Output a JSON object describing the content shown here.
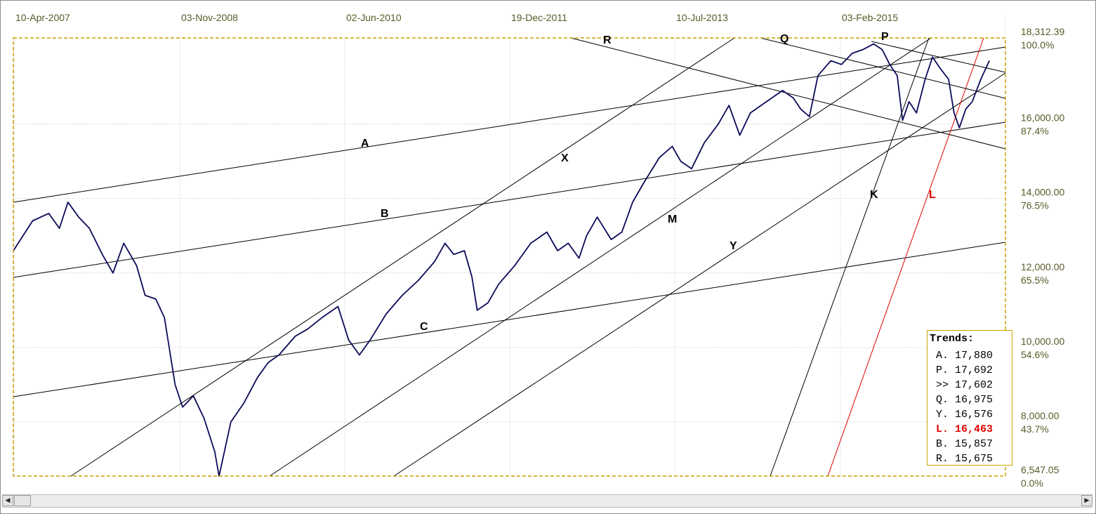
{
  "chart_data": {
    "type": "line",
    "x_ticks": [
      "10-Apr-2007",
      "03-Nov-2008",
      "02-Jun-2010",
      "19-Dec-2011",
      "10-Jul-2013",
      "03-Feb-2015"
    ],
    "y_ticks": [
      {
        "value": "18,312.39",
        "pct": "100.0%"
      },
      {
        "value": "16,000.00",
        "pct": "87.4%"
      },
      {
        "value": "14,000.00",
        "pct": "76.5%"
      },
      {
        "value": "12,000.00",
        "pct": "65.5%"
      },
      {
        "value": "10,000.00",
        "pct": "54.6%"
      },
      {
        "value": "8,000.00",
        "pct": "43.7%"
      },
      {
        "value": "6,547.05",
        "pct": "0.0%"
      }
    ],
    "y_range": [
      6547.05,
      18312.39
    ],
    "x_range_years": [
      2007.27,
      2016.53
    ],
    "grid": true,
    "series": [
      {
        "color": "#0a0a5a",
        "points": [
          [
            2007.27,
            12600
          ],
          [
            2007.45,
            13400
          ],
          [
            2007.6,
            13600
          ],
          [
            2007.7,
            13200
          ],
          [
            2007.78,
            13900
          ],
          [
            2007.88,
            13500
          ],
          [
            2007.98,
            13200
          ],
          [
            2008.1,
            12500
          ],
          [
            2008.2,
            12000
          ],
          [
            2008.3,
            12800
          ],
          [
            2008.42,
            12200
          ],
          [
            2008.5,
            11400
          ],
          [
            2008.6,
            11300
          ],
          [
            2008.68,
            10800
          ],
          [
            2008.78,
            9000
          ],
          [
            2008.85,
            8400
          ],
          [
            2008.95,
            8700
          ],
          [
            2009.05,
            8100
          ],
          [
            2009.15,
            7200
          ],
          [
            2009.19,
            6547
          ],
          [
            2009.3,
            8000
          ],
          [
            2009.42,
            8500
          ],
          [
            2009.55,
            9200
          ],
          [
            2009.65,
            9600
          ],
          [
            2009.75,
            9800
          ],
          [
            2009.9,
            10300
          ],
          [
            2010.02,
            10500
          ],
          [
            2010.15,
            10800
          ],
          [
            2010.3,
            11100
          ],
          [
            2010.4,
            10200
          ],
          [
            2010.5,
            9800
          ],
          [
            2010.6,
            10200
          ],
          [
            2010.75,
            10900
          ],
          [
            2010.9,
            11400
          ],
          [
            2011.05,
            11800
          ],
          [
            2011.2,
            12300
          ],
          [
            2011.3,
            12800
          ],
          [
            2011.38,
            12500
          ],
          [
            2011.48,
            12600
          ],
          [
            2011.55,
            11900
          ],
          [
            2011.6,
            11000
          ],
          [
            2011.7,
            11200
          ],
          [
            2011.8,
            11700
          ],
          [
            2011.95,
            12200
          ],
          [
            2012.1,
            12800
          ],
          [
            2012.25,
            13100
          ],
          [
            2012.35,
            12600
          ],
          [
            2012.45,
            12800
          ],
          [
            2012.55,
            12400
          ],
          [
            2012.62,
            13000
          ],
          [
            2012.72,
            13500
          ],
          [
            2012.85,
            12900
          ],
          [
            2012.95,
            13100
          ],
          [
            2013.05,
            13900
          ],
          [
            2013.15,
            14400
          ],
          [
            2013.3,
            15100
          ],
          [
            2013.42,
            15400
          ],
          [
            2013.5,
            15000
          ],
          [
            2013.6,
            14800
          ],
          [
            2013.72,
            15500
          ],
          [
            2013.85,
            16000
          ],
          [
            2013.95,
            16500
          ],
          [
            2014.05,
            15700
          ],
          [
            2014.15,
            16300
          ],
          [
            2014.3,
            16600
          ],
          [
            2014.45,
            16900
          ],
          [
            2014.55,
            16700
          ],
          [
            2014.62,
            16400
          ],
          [
            2014.7,
            16200
          ],
          [
            2014.78,
            17300
          ],
          [
            2014.9,
            17700
          ],
          [
            2015.0,
            17600
          ],
          [
            2015.1,
            17900
          ],
          [
            2015.2,
            18000
          ],
          [
            2015.3,
            18150
          ],
          [
            2015.38,
            18000
          ],
          [
            2015.45,
            17600
          ],
          [
            2015.52,
            17300
          ],
          [
            2015.57,
            16100
          ],
          [
            2015.63,
            16600
          ],
          [
            2015.7,
            16300
          ],
          [
            2015.78,
            17200
          ],
          [
            2015.85,
            17800
          ],
          [
            2015.92,
            17500
          ],
          [
            2016.0,
            17200
          ],
          [
            2016.05,
            16300
          ],
          [
            2016.1,
            15900
          ],
          [
            2016.16,
            16400
          ],
          [
            2016.22,
            16600
          ],
          [
            2016.3,
            17200
          ],
          [
            2016.38,
            17700
          ]
        ]
      }
    ],
    "line_labels": [
      {
        "text": "A",
        "color": "#000000"
      },
      {
        "text": "B",
        "color": "#000000"
      },
      {
        "text": "C",
        "color": "#000000"
      },
      {
        "text": "X",
        "color": "#000000"
      },
      {
        "text": "M",
        "color": "#000000"
      },
      {
        "text": "Y",
        "color": "#000000"
      },
      {
        "text": "K",
        "color": "#000000"
      },
      {
        "text": "L",
        "color": "#e00000"
      },
      {
        "text": "R",
        "color": "#000000"
      },
      {
        "text": "Q",
        "color": "#000000"
      },
      {
        "text": "P",
        "color": "#000000"
      }
    ]
  },
  "trends": {
    "title": "Trends:",
    "rows": [
      {
        "text": "A. 17,880",
        "highlight": false
      },
      {
        "text": "P. 17,692",
        "highlight": false
      },
      {
        "text": ">> 17,602",
        "highlight": false
      },
      {
        "text": "Q. 16,975",
        "highlight": false
      },
      {
        "text": "Y. 16,576",
        "highlight": false
      },
      {
        "text": "L. 16,463",
        "highlight": true
      },
      {
        "text": "B. 15,857",
        "highlight": false
      },
      {
        "text": "R. 15,675",
        "highlight": false
      }
    ]
  },
  "colors": {
    "price_line": "#0a0a5a",
    "plot_border": "#c8a000",
    "axis_text": "#5a5a2a",
    "trend_highlight": "#e00000"
  },
  "icons": {
    "scroll_left": "◀",
    "scroll_right": "▶"
  }
}
